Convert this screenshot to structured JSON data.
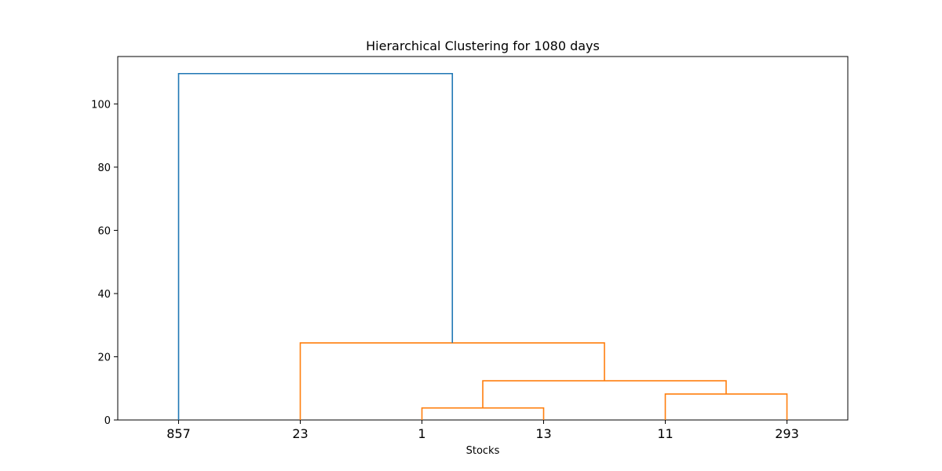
{
  "chart_data": {
    "type": "dendrogram",
    "title": "Hierarchical Clustering for 1080 days",
    "xlabel": "Stocks",
    "ylabel": "",
    "leaves": [
      "857",
      "23",
      "1",
      "13",
      "11",
      "293"
    ],
    "ylim": [
      0,
      115
    ],
    "yticks": [
      0,
      20,
      40,
      60,
      80,
      100
    ],
    "grid": false,
    "colors": {
      "cluster": "#ff7f0e",
      "above_threshold": "#1f77b4"
    },
    "merges": [
      {
        "left": "1",
        "right": "13",
        "height": 3.8,
        "color": "cluster"
      },
      {
        "left": "11",
        "right": "293",
        "height": 8.2,
        "color": "cluster"
      },
      {
        "left": "(1, 13)",
        "right": "(11, 293)",
        "height": 12.4,
        "color": "cluster"
      },
      {
        "left": "23",
        "right": "(1, 13, 11, 293)",
        "height": 24.4,
        "color": "cluster"
      },
      {
        "left": "857",
        "right": "(23, 1, 13, 11, 293)",
        "height": 109.6,
        "color": "above_threshold"
      }
    ]
  }
}
